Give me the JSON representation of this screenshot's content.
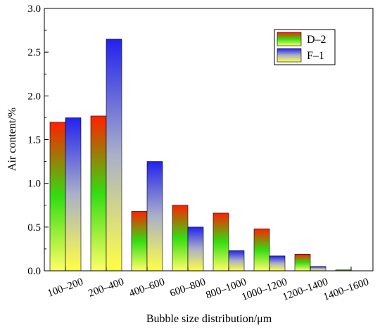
{
  "chart_data": {
    "type": "bar",
    "title": "",
    "xlabel": "Bubble size distribution/μm",
    "ylabel": "Air content/%",
    "ylim": [
      0,
      3.0
    ],
    "yticks": [
      "0.0",
      "0.5",
      "1.0",
      "1.5",
      "2.0",
      "2.5",
      "3.0"
    ],
    "categories": [
      "100–200",
      "200–400",
      "400–600",
      "600–800",
      "800–1000",
      "1000–1200",
      "1200–1400",
      "1400–1600"
    ],
    "series": [
      {
        "name": "D–2",
        "values": [
          1.7,
          1.77,
          0.68,
          0.75,
          0.66,
          0.48,
          0.19,
          0.01
        ]
      },
      {
        "name": "F–1",
        "values": [
          1.75,
          2.65,
          1.25,
          0.5,
          0.23,
          0.17,
          0.05,
          0.0
        ]
      }
    ],
    "legend_position": "top-right",
    "grid": false,
    "colors": {
      "D–2": [
        "#ff2000",
        "#33dd11",
        "#ffff66"
      ],
      "F–1": [
        "#2222ee",
        "#aab0c8",
        "#ffff44"
      ]
    }
  }
}
